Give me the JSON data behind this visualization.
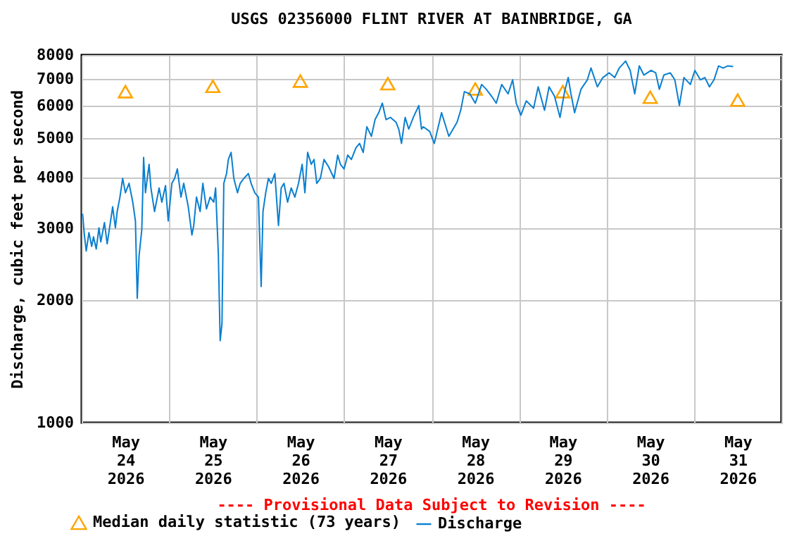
{
  "chart_data": {
    "type": "line",
    "title": "USGS 02356000 FLINT RIVER AT BAINBRIDGE, GA",
    "ylabel": "Discharge, cubic feet per second",
    "annotations": [
      "---- Provisional Data Subject to Revision ----"
    ],
    "log": "y",
    "grid": true,
    "legend": "bottom",
    "xlim": [
      "2026-05-24T00:00",
      "2026-06-01T00:00"
    ],
    "xticks": [
      {
        "value": "2026-05-24T00:00",
        "label": null
      },
      {
        "value": "2026-05-24T12:00",
        "label": "May 24 2026"
      },
      {
        "value": "2026-05-25T00:00",
        "label": null
      },
      {
        "value": "2026-05-25T12:00",
        "label": "May 25 2026"
      },
      {
        "value": "2026-05-26T00:00",
        "label": null
      },
      {
        "value": "2026-05-26T12:00",
        "label": "May 26 2026"
      },
      {
        "value": "2026-05-27T00:00",
        "label": null
      },
      {
        "value": "2026-05-27T12:00",
        "label": "May 27 2026"
      },
      {
        "value": "2026-05-28T00:00",
        "label": null
      },
      {
        "value": "2026-05-28T12:00",
        "label": "May 28 2026"
      },
      {
        "value": "2026-05-29T00:00",
        "label": null
      },
      {
        "value": "2026-05-29T12:00",
        "label": "May 29 2026"
      },
      {
        "value": "2026-05-30T00:00",
        "label": null
      },
      {
        "value": "2026-05-30T12:00",
        "label": "May 30 2026"
      },
      {
        "value": "2026-05-31T00:00",
        "label": null
      },
      {
        "value": "2026-05-31T12:00",
        "label": "May 31 2026"
      },
      {
        "value": "2026-06-01T00:00",
        "label": null
      }
    ],
    "ylim": [
      1000,
      8000
    ],
    "yticks": [
      1000,
      2000,
      3000,
      4000,
      5000,
      6000,
      7000,
      8000
    ],
    "series": [
      {
        "name": "Median daily statistic (73 years)",
        "type": "scatter",
        "marker": "triangle",
        "color": "#ffa500",
        "x": [
          "2026-05-24T12:00",
          "2026-05-25T12:00",
          "2026-05-26T12:00",
          "2026-05-27T12:00",
          "2026-05-28T12:00",
          "2026-05-29T12:00",
          "2026-05-30T12:00",
          "2026-05-31T12:00"
        ],
        "values": [
          6500,
          6700,
          6900,
          6800,
          6600,
          6500,
          6300,
          6200
        ]
      },
      {
        "name": "Discharge",
        "type": "line",
        "color": "#0a7fd0",
        "x": [
          "2026-05-24T00:15",
          "2026-05-24T00:45",
          "2026-05-24T01:15",
          "2026-05-24T02:00",
          "2026-05-24T02:45",
          "2026-05-24T03:15",
          "2026-05-24T04:00",
          "2026-05-24T04:45",
          "2026-05-24T05:15",
          "2026-05-24T06:15",
          "2026-05-24T07:00",
          "2026-05-24T07:45",
          "2026-05-24T08:30",
          "2026-05-24T09:15",
          "2026-05-24T09:45",
          "2026-05-24T10:30",
          "2026-05-24T11:15",
          "2026-05-24T12:00",
          "2026-05-24T13:00",
          "2026-05-24T14:00",
          "2026-05-24T14:45",
          "2026-05-24T15:15",
          "2026-05-24T15:45",
          "2026-05-24T16:30",
          "2026-05-24T17:00",
          "2026-05-24T17:30",
          "2026-05-24T18:30",
          "2026-05-24T19:00",
          "2026-05-24T20:00",
          "2026-05-24T21:15",
          "2026-05-24T22:00",
          "2026-05-24T23:00",
          "2026-05-24T23:45",
          "2026-05-25T00:45",
          "2026-05-25T01:30",
          "2026-05-25T02:15",
          "2026-05-25T03:15",
          "2026-05-25T04:00",
          "2026-05-25T05:15",
          "2026-05-25T06:15",
          "2026-05-25T06:45",
          "2026-05-25T07:30",
          "2026-05-25T08:30",
          "2026-05-25T09:15",
          "2026-05-25T10:15",
          "2026-05-25T11:15",
          "2026-05-25T12:15",
          "2026-05-25T12:45",
          "2026-05-25T13:30",
          "2026-05-25T14:00",
          "2026-05-25T14:30",
          "2026-05-25T15:00",
          "2026-05-25T15:45",
          "2026-05-25T16:15",
          "2026-05-25T17:00",
          "2026-05-25T17:45",
          "2026-05-25T18:45",
          "2026-05-25T19:30",
          "2026-05-25T20:30",
          "2026-05-25T21:45",
          "2026-05-25T22:30",
          "2026-05-25T23:30",
          "2026-05-26T00:30",
          "2026-05-26T01:15",
          "2026-05-26T01:45",
          "2026-05-26T02:30",
          "2026-05-26T03:15",
          "2026-05-26T04:00",
          "2026-05-26T05:00",
          "2026-05-26T06:00",
          "2026-05-26T06:45",
          "2026-05-26T07:30",
          "2026-05-26T08:30",
          "2026-05-26T09:30",
          "2026-05-26T10:30",
          "2026-05-26T11:30",
          "2026-05-26T12:30",
          "2026-05-26T13:15",
          "2026-05-26T14:00",
          "2026-05-26T15:00",
          "2026-05-26T15:45",
          "2026-05-26T16:30",
          "2026-05-26T17:30",
          "2026-05-26T18:30",
          "2026-05-26T19:45",
          "2026-05-26T21:15",
          "2026-05-26T22:15",
          "2026-05-26T23:00",
          "2026-05-27T00:00",
          "2026-05-27T01:00",
          "2026-05-27T02:00",
          "2026-05-27T03:15",
          "2026-05-27T04:15",
          "2026-05-27T05:15",
          "2026-05-27T06:15",
          "2026-05-27T07:30",
          "2026-05-27T08:30",
          "2026-05-27T09:30",
          "2026-05-27T10:30",
          "2026-05-27T11:30",
          "2026-05-27T12:45",
          "2026-05-27T14:15",
          "2026-05-27T15:00",
          "2026-05-27T15:45",
          "2026-05-27T16:45",
          "2026-05-27T17:45",
          "2026-05-27T19:00",
          "2026-05-27T20:30",
          "2026-05-27T21:15",
          "2026-05-27T21:45",
          "2026-05-27T23:30",
          "2026-05-28T00:45",
          "2026-05-28T02:45",
          "2026-05-28T04:45",
          "2026-05-28T07:00",
          "2026-05-28T08:00",
          "2026-05-28T09:00",
          "2026-05-28T10:30",
          "2026-05-28T12:00",
          "2026-05-28T13:45",
          "2026-05-28T15:00",
          "2026-05-28T16:30",
          "2026-05-28T17:45",
          "2026-05-28T19:15",
          "2026-05-28T21:00",
          "2026-05-28T22:15",
          "2026-05-28T23:15",
          "2026-05-29T00:30",
          "2026-05-29T02:00",
          "2026-05-29T04:00",
          "2026-05-29T05:15",
          "2026-05-29T07:00",
          "2026-05-29T08:15",
          "2026-05-29T09:45",
          "2026-05-29T11:15",
          "2026-05-29T12:30",
          "2026-05-29T13:30",
          "2026-05-29T14:15",
          "2026-05-29T15:15",
          "2026-05-29T17:00",
          "2026-05-29T18:45",
          "2026-05-29T19:45",
          "2026-05-29T21:30",
          "2026-05-29T23:00",
          "2026-05-30T00:45",
          "2026-05-30T02:15",
          "2026-05-30T03:30",
          "2026-05-30T05:15",
          "2026-05-30T06:30",
          "2026-05-30T07:45",
          "2026-05-30T09:00",
          "2026-05-30T10:15",
          "2026-05-30T12:15",
          "2026-05-30T13:30",
          "2026-05-30T14:30",
          "2026-05-30T15:45",
          "2026-05-30T17:30",
          "2026-05-30T18:45",
          "2026-05-30T20:00",
          "2026-05-30T21:15",
          "2026-05-30T23:00",
          "2026-05-31T00:15",
          "2026-05-31T01:45",
          "2026-05-31T03:00",
          "2026-05-31T04:15",
          "2026-05-31T05:30",
          "2026-05-31T06:45",
          "2026-05-31T08:00",
          "2026-05-31T09:15",
          "2026-05-31T10:45"
        ],
        "values": [
          3260,
          2890,
          2640,
          2930,
          2710,
          2860,
          2670,
          3010,
          2780,
          3100,
          2750,
          3050,
          3390,
          3010,
          3300,
          3580,
          3980,
          3670,
          3870,
          3490,
          3130,
          2020,
          2570,
          2980,
          4480,
          3670,
          4310,
          3770,
          3300,
          3770,
          3480,
          3820,
          3130,
          3870,
          3980,
          4200,
          3580,
          3870,
          3390,
          2890,
          3050,
          3580,
          3300,
          3870,
          3350,
          3580,
          3480,
          3770,
          2600,
          1590,
          1750,
          3870,
          4090,
          4430,
          4610,
          3980,
          3670,
          3870,
          3980,
          4090,
          3870,
          3670,
          3580,
          2160,
          3300,
          3670,
          3980,
          3870,
          4090,
          3050,
          3770,
          3870,
          3480,
          3770,
          3580,
          3870,
          4310,
          3670,
          4610,
          4310,
          4430,
          3870,
          3980,
          4430,
          4250,
          3980,
          4540,
          4310,
          4200,
          4540,
          4430,
          4730,
          4850,
          4610,
          5330,
          5050,
          5550,
          5770,
          6090,
          5550,
          5620,
          5470,
          5260,
          4850,
          5620,
          5260,
          5620,
          6010,
          5260,
          5330,
          5190,
          4850,
          5770,
          5050,
          5470,
          5850,
          6500,
          6420,
          6090,
          6770,
          6590,
          6330,
          6090,
          6770,
          6420,
          6950,
          6090,
          5690,
          6170,
          5920,
          6680,
          5850,
          6680,
          6330,
          5620,
          6500,
          7040,
          6420,
          5770,
          6590,
          6950,
          7430,
          6680,
          7040,
          7230,
          7040,
          7430,
          7730,
          7330,
          6420,
          7520,
          7140,
          7330,
          7230,
          6590,
          7140,
          7230,
          6950,
          6010,
          7040,
          6770,
          7330,
          6950,
          7040,
          6680,
          6950,
          7520,
          7430,
          7520,
          7490
        ]
      }
    ]
  }
}
